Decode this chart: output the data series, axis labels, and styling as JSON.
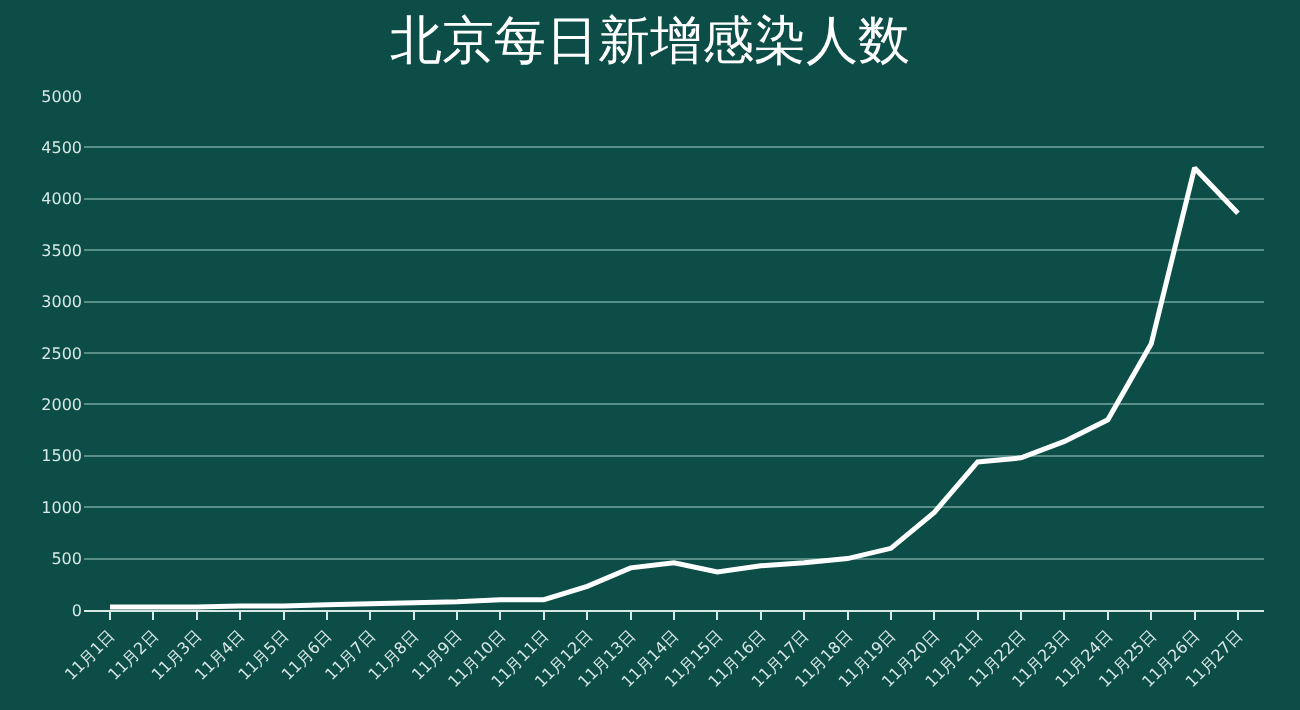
{
  "chart_data": {
    "type": "line",
    "title": "北京每日新增感染人数",
    "categories": [
      "11月1日",
      "11月2日",
      "11月3日",
      "11月4日",
      "11月5日",
      "11月6日",
      "11月7日",
      "11月8日",
      "11月9日",
      "11月10日",
      "11月11日",
      "11月12日",
      "11月13日",
      "11月14日",
      "11月15日",
      "11月16日",
      "11月17日",
      "11月18日",
      "11月19日",
      "11月20日",
      "11月21日",
      "11月22日",
      "11月23日",
      "11月24日",
      "11月25日",
      "11月26日",
      "11月27日"
    ],
    "series": [
      {
        "color": "#ffffff",
        "values": [
          30,
          30,
          30,
          40,
          40,
          50,
          60,
          70,
          80,
          100,
          100,
          230,
          410,
          460,
          370,
          430,
          460,
          500,
          600,
          950,
          1440,
          1480,
          1640,
          1850,
          2590,
          4300,
          3860
        ]
      }
    ],
    "ylim": [
      0,
      5000
    ],
    "yticks": [
      0,
      500,
      1000,
      1500,
      2000,
      2500,
      3000,
      3500,
      4000,
      4500,
      5000
    ],
    "grid": "y",
    "marker": "none",
    "line_style": "solid"
  }
}
